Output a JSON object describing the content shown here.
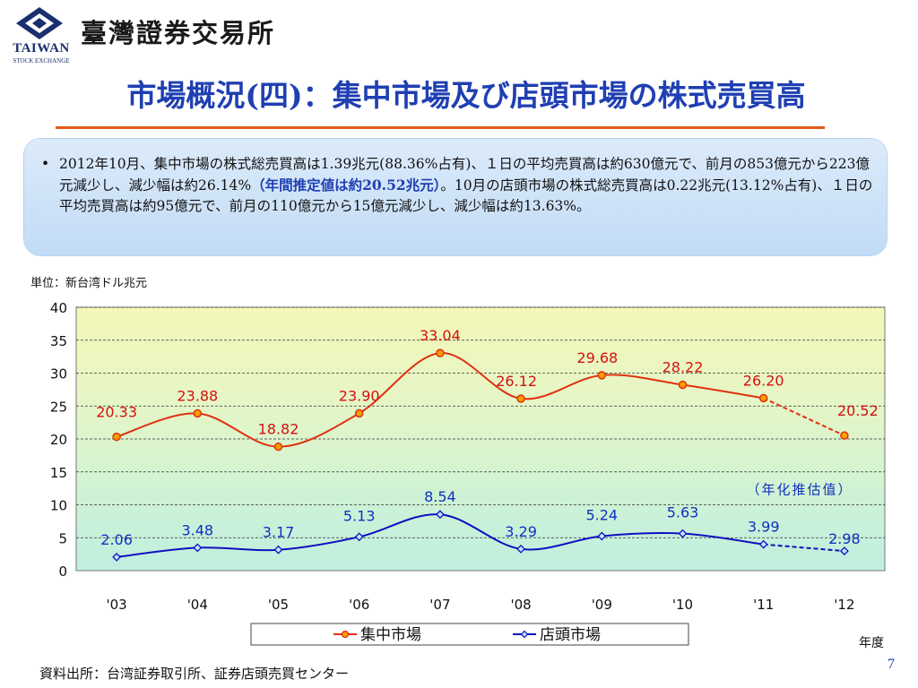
{
  "header": {
    "logo_word": "TAIWAN",
    "logo_sub": "STOCK EXCHANGE",
    "org_name": "臺灣證券交易所"
  },
  "title": "市場概況(四)：集中市場及び店頭市場の株式売買高",
  "summary": {
    "bullet": "•",
    "text_before": "2012年10月、集中市場の株式総売買高は1.39兆元(88.36%占有)、１日の平均売買高は約630億元で、前月の853億元から223億元減少し、減少幅は約26.14%",
    "highlight": "（年間推定値は約20.52兆元）",
    "text_after": "。10月の店頭市場の株式総売買高は0.22兆元(13.12%占有)、１日の平均売買高は約95億元で、前月の110億元から15億元減少し、減少幅は約13.63%。"
  },
  "unit_label": "単位：新台湾ドル兆元",
  "estimate_note": "（年化推估值）",
  "year_label": "年度",
  "source": "資料出所：台湾証券取引所、証券店頭売買センター",
  "page_number": "7",
  "colors": {
    "series1": "#e03010",
    "series2": "#1010c0",
    "series1_label": "#d41010",
    "series2_label": "#1030c0"
  },
  "chart_data": {
    "type": "line",
    "categories": [
      "'03",
      "'04",
      "'05",
      "'06",
      "'07",
      "'08",
      "'09",
      "'10",
      "'11",
      "'12"
    ],
    "series": [
      {
        "name": "集中市場",
        "values": [
          20.33,
          23.88,
          18.82,
          23.9,
          33.04,
          26.12,
          29.68,
          28.22,
          26.2,
          20.52
        ],
        "labels": [
          "20.33",
          "23.88",
          "18.82",
          "23.90",
          "33.04",
          "26.12",
          "29.68",
          "28.22",
          "26.20",
          "20.52"
        ]
      },
      {
        "name": "店頭市場",
        "values": [
          2.06,
          3.48,
          3.17,
          5.13,
          8.54,
          3.29,
          5.24,
          5.63,
          3.99,
          2.98
        ],
        "labels": [
          "2.06",
          "3.48",
          "3.17",
          "5.13",
          "8.54",
          "3.29",
          "5.24",
          "5.63",
          "3.99",
          "2.98"
        ]
      }
    ],
    "estimated_last_point": true,
    "ylim": [
      0,
      40
    ],
    "yticks": [
      0,
      5,
      10,
      15,
      20,
      25,
      30,
      35,
      40
    ],
    "ytick_labels": [
      "0",
      "5",
      "10",
      "15",
      "20",
      "25",
      "30",
      "35",
      "40"
    ],
    "grid": true,
    "legend_placement": "bottom"
  }
}
